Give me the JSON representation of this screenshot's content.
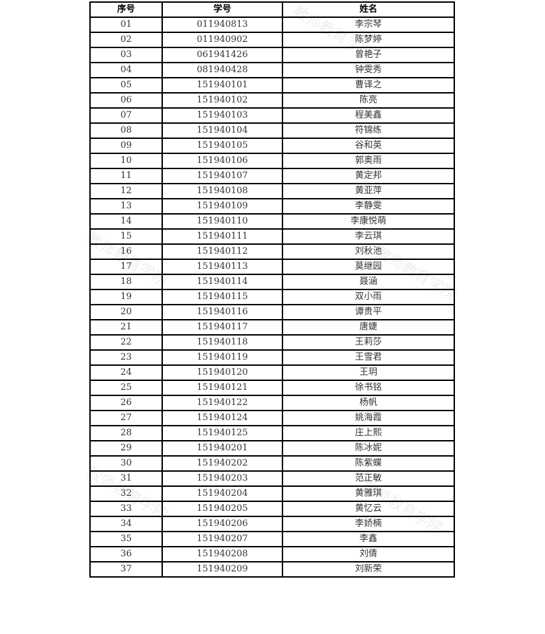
{
  "watermark": "教师教育学院",
  "table": {
    "headers": [
      "序号",
      "学号",
      "姓名"
    ],
    "rows": [
      [
        "01",
        "011940813",
        "李宗琴"
      ],
      [
        "02",
        "011940902",
        "陈梦婷"
      ],
      [
        "03",
        "061941426",
        "曾艳子"
      ],
      [
        "04",
        "081940428",
        "钟雯秀"
      ],
      [
        "05",
        "151940101",
        "曹译之"
      ],
      [
        "06",
        "151940102",
        "陈亮"
      ],
      [
        "07",
        "151940103",
        "程美鑫"
      ],
      [
        "08",
        "151940104",
        "符锦练"
      ],
      [
        "09",
        "151940105",
        "谷和英"
      ],
      [
        "10",
        "151940106",
        "郭奥雨"
      ],
      [
        "11",
        "151940107",
        "黄定邦"
      ],
      [
        "12",
        "151940108",
        "黄亚萍"
      ],
      [
        "13",
        "151940109",
        "李静雯"
      ],
      [
        "14",
        "151940110",
        "李康悦萌"
      ],
      [
        "15",
        "151940111",
        "李云琪"
      ],
      [
        "16",
        "151940112",
        "刘秋池"
      ],
      [
        "17",
        "151940113",
        "莫继园"
      ],
      [
        "18",
        "151940114",
        "聂涵"
      ],
      [
        "19",
        "151940115",
        "双小雨"
      ],
      [
        "20",
        "151940116",
        "谭贵平"
      ],
      [
        "21",
        "151940117",
        "唐婕"
      ],
      [
        "22",
        "151940118",
        "王莉莎"
      ],
      [
        "23",
        "151940119",
        "王雪君"
      ],
      [
        "24",
        "151940120",
        "王玥"
      ],
      [
        "25",
        "151940121",
        "徐书铭"
      ],
      [
        "26",
        "151940122",
        "杨帆"
      ],
      [
        "27",
        "151940124",
        "姚海霞"
      ],
      [
        "28",
        "151940125",
        "庄上熙"
      ],
      [
        "29",
        "151940201",
        "陈冰妮"
      ],
      [
        "30",
        "151940202",
        "陈紫蝶"
      ],
      [
        "31",
        "151940203",
        "范正敏"
      ],
      [
        "32",
        "151940204",
        "黄雅琪"
      ],
      [
        "33",
        "151940205",
        "黄忆云"
      ],
      [
        "34",
        "151940206",
        "李娇楠"
      ],
      [
        "35",
        "151940207",
        "李鑫"
      ],
      [
        "36",
        "151940208",
        "刘倩"
      ],
      [
        "37",
        "151940209",
        "刘新荣"
      ]
    ]
  }
}
